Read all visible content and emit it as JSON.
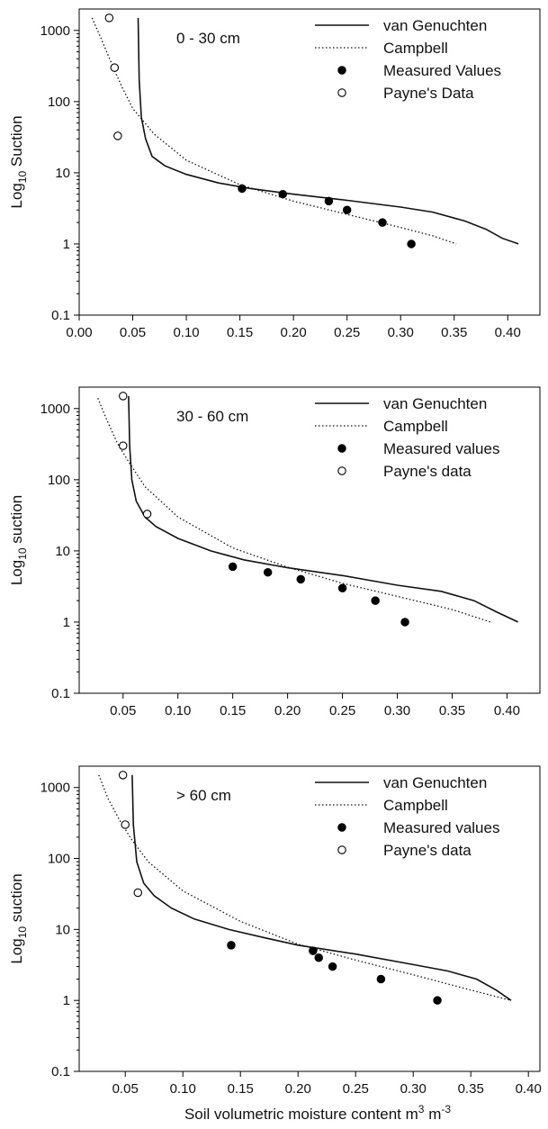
{
  "figure": {
    "xlabel_main": "Soil volumetric moisture content m",
    "xlabel_sup1": "3",
    "xlabel_mid": " m",
    "xlabel_sup2": "-3"
  },
  "chart_data": [
    {
      "type": "line",
      "panel_label": "0 - 30 cm",
      "ylabel_prefix": "Log",
      "ylabel_sub": "10",
      "ylabel_suffix": " Suction",
      "xlabel": "",
      "xlim": [
        0.0,
        0.43
      ],
      "ylim": [
        0.1,
        2000
      ],
      "yscale": "log",
      "xticks": [
        0.0,
        0.05,
        0.1,
        0.15,
        0.2,
        0.25,
        0.3,
        0.35,
        0.4
      ],
      "xtick_labels": [
        "0.00",
        "0.05",
        "0.10",
        "0.15",
        "0.20",
        "0.25",
        "0.30",
        "0.35",
        "0.40"
      ],
      "yticks": [
        0.1,
        1,
        10,
        100,
        1000
      ],
      "ytick_labels": [
        "0.1",
        "1",
        "10",
        "100",
        "1000"
      ],
      "legend": [
        "van Genuchten",
        "Campbell",
        "Measured Values",
        "Payne's Data"
      ],
      "series": [
        {
          "name": "van Genuchten",
          "style": "solid",
          "points": [
            [
              0.055,
              1500
            ],
            [
              0.056,
              200
            ],
            [
              0.058,
              60
            ],
            [
              0.062,
              30
            ],
            [
              0.068,
              17
            ],
            [
              0.08,
              12.5
            ],
            [
              0.1,
              9.5
            ],
            [
              0.13,
              7.2
            ],
            [
              0.16,
              6
            ],
            [
              0.2,
              5
            ],
            [
              0.25,
              4.1
            ],
            [
              0.3,
              3.3
            ],
            [
              0.33,
              2.8
            ],
            [
              0.36,
              2.1
            ],
            [
              0.38,
              1.6
            ],
            [
              0.395,
              1.2
            ],
            [
              0.41,
              1
            ]
          ]
        },
        {
          "name": "Campbell",
          "style": "dotted",
          "points": [
            [
              0.012,
              1500
            ],
            [
              0.02,
              800
            ],
            [
              0.03,
              350
            ],
            [
              0.04,
              160
            ],
            [
              0.05,
              80
            ],
            [
              0.07,
              35
            ],
            [
              0.1,
              15
            ],
            [
              0.15,
              6.8
            ],
            [
              0.2,
              4
            ],
            [
              0.25,
              2.6
            ],
            [
              0.3,
              1.7
            ],
            [
              0.33,
              1.3
            ],
            [
              0.352,
              1
            ]
          ]
        },
        {
          "name": "Measured Values",
          "style": "filled",
          "points": [
            [
              0.152,
              6
            ],
            [
              0.19,
              5
            ],
            [
              0.233,
              4
            ],
            [
              0.25,
              3
            ],
            [
              0.283,
              2
            ],
            [
              0.31,
              1
            ]
          ]
        },
        {
          "name": "Payne's Data",
          "style": "open",
          "points": [
            [
              0.028,
              1500
            ],
            [
              0.033,
              300
            ],
            [
              0.036,
              33
            ]
          ]
        }
      ]
    },
    {
      "type": "line",
      "panel_label": "30 - 60 cm",
      "ylabel_prefix": "Log",
      "ylabel_sub": "10",
      "ylabel_suffix": " suction",
      "xlabel": "",
      "xlim": [
        0.01,
        0.43
      ],
      "ylim": [
        0.1,
        2000
      ],
      "yscale": "log",
      "xticks": [
        0.05,
        0.1,
        0.15,
        0.2,
        0.25,
        0.3,
        0.35,
        0.4
      ],
      "xtick_labels": [
        "0.05",
        "0.10",
        "0.15",
        "0.20",
        "0.25",
        "0.30",
        "0.35",
        "0.40"
      ],
      "yticks": [
        0.1,
        1,
        10,
        100,
        1000
      ],
      "ytick_labels": [
        "0.1",
        "1",
        "10",
        "100",
        "1000"
      ],
      "legend": [
        "van Genuchten",
        "Campbell",
        "Measured values",
        "Payne's data"
      ],
      "series": [
        {
          "name": "van Genuchten",
          "style": "solid",
          "points": [
            [
              0.055,
              1500
            ],
            [
              0.056,
              300
            ],
            [
              0.058,
              100
            ],
            [
              0.062,
              50
            ],
            [
              0.07,
              30
            ],
            [
              0.08,
              22
            ],
            [
              0.1,
              15
            ],
            [
              0.13,
              10
            ],
            [
              0.16,
              7.5
            ],
            [
              0.2,
              5.8
            ],
            [
              0.25,
              4.5
            ],
            [
              0.3,
              3.3
            ],
            [
              0.34,
              2.7
            ],
            [
              0.37,
              2
            ],
            [
              0.39,
              1.4
            ],
            [
              0.41,
              1
            ]
          ]
        },
        {
          "name": "Campbell",
          "style": "dotted",
          "points": [
            [
              0.027,
              1400
            ],
            [
              0.035,
              700
            ],
            [
              0.045,
              320
            ],
            [
              0.055,
              180
            ],
            [
              0.07,
              80
            ],
            [
              0.1,
              30
            ],
            [
              0.15,
              11
            ],
            [
              0.2,
              5.9
            ],
            [
              0.25,
              3.5
            ],
            [
              0.3,
              2.3
            ],
            [
              0.35,
              1.5
            ],
            [
              0.385,
              1
            ]
          ]
        },
        {
          "name": "Measured values",
          "style": "filled",
          "points": [
            [
              0.15,
              6
            ],
            [
              0.182,
              5
            ],
            [
              0.212,
              4
            ],
            [
              0.25,
              3
            ],
            [
              0.28,
              2
            ],
            [
              0.307,
              1
            ]
          ]
        },
        {
          "name": "Payne's data",
          "style": "open",
          "points": [
            [
              0.05,
              1500
            ],
            [
              0.05,
              300
            ],
            [
              0.072,
              33
            ]
          ]
        }
      ]
    },
    {
      "type": "line",
      "panel_label": "> 60 cm",
      "ylabel_prefix": "Log",
      "ylabel_sub": "10",
      "ylabel_suffix": " suction",
      "xlabel": "",
      "xlim": [
        0.01,
        0.41
      ],
      "ylim": [
        0.1,
        2000
      ],
      "yscale": "log",
      "xticks": [
        0.05,
        0.1,
        0.15,
        0.2,
        0.25,
        0.3,
        0.35,
        0.4
      ],
      "xtick_labels": [
        "0.05",
        "0.10",
        "0.15",
        "0.20",
        "0.25",
        "0.30",
        "0.35",
        "0.40"
      ],
      "yticks": [
        0.1,
        1,
        10,
        100,
        1000
      ],
      "ytick_labels": [
        "0.1",
        "1",
        "10",
        "100",
        "1000"
      ],
      "legend": [
        "van Genuchten",
        "Campbell",
        "Measured values",
        "Payne's data"
      ],
      "series": [
        {
          "name": "van Genuchten",
          "style": "solid",
          "points": [
            [
              0.056,
              1500
            ],
            [
              0.057,
              300
            ],
            [
              0.06,
              90
            ],
            [
              0.066,
              45
            ],
            [
              0.075,
              30
            ],
            [
              0.09,
              20
            ],
            [
              0.11,
              14
            ],
            [
              0.14,
              10
            ],
            [
              0.17,
              7.7
            ],
            [
              0.2,
              6
            ],
            [
              0.25,
              4.5
            ],
            [
              0.3,
              3.2
            ],
            [
              0.33,
              2.6
            ],
            [
              0.355,
              2
            ],
            [
              0.372,
              1.4
            ],
            [
              0.385,
              1
            ]
          ]
        },
        {
          "name": "Campbell",
          "style": "dotted",
          "points": [
            [
              0.027,
              1500
            ],
            [
              0.035,
              700
            ],
            [
              0.045,
              350
            ],
            [
              0.055,
              190
            ],
            [
              0.07,
              90
            ],
            [
              0.1,
              35
            ],
            [
              0.15,
              13
            ],
            [
              0.2,
              6.2
            ],
            [
              0.25,
              3.7
            ],
            [
              0.3,
              2.3
            ],
            [
              0.35,
              1.4
            ],
            [
              0.385,
              1
            ]
          ]
        },
        {
          "name": "Measured values",
          "style": "filled",
          "points": [
            [
              0.142,
              6
            ],
            [
              0.213,
              5
            ],
            [
              0.218,
              4
            ],
            [
              0.23,
              3
            ],
            [
              0.272,
              2
            ],
            [
              0.321,
              1
            ]
          ]
        },
        {
          "name": "Payne's data",
          "style": "open",
          "points": [
            [
              0.048,
              1500
            ],
            [
              0.05,
              300
            ],
            [
              0.061,
              33
            ]
          ]
        }
      ]
    }
  ]
}
